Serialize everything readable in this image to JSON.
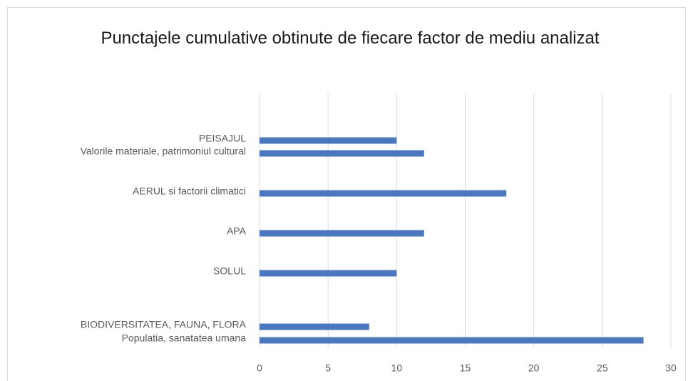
{
  "chart_data": {
    "type": "bar",
    "orientation": "horizontal",
    "title": "Punctajele cumulative obtinute de fiecare factor de mediu analizat",
    "categories": [
      "PEISAJUL",
      "Valorile materiale, patrimoniul cultural",
      "AERUL si factorii climatici",
      "APA",
      "SOLUL",
      "BIODIVERSITATEA, FAUNA, FLORA",
      "Populatia, sanatatea umana"
    ],
    "values": [
      10,
      12,
      18,
      12,
      10,
      8,
      28
    ],
    "color": "#4a78c0",
    "xlim": [
      0,
      30
    ],
    "xticks": [
      0,
      5,
      10,
      15,
      20,
      25,
      30
    ],
    "grid": true
  }
}
